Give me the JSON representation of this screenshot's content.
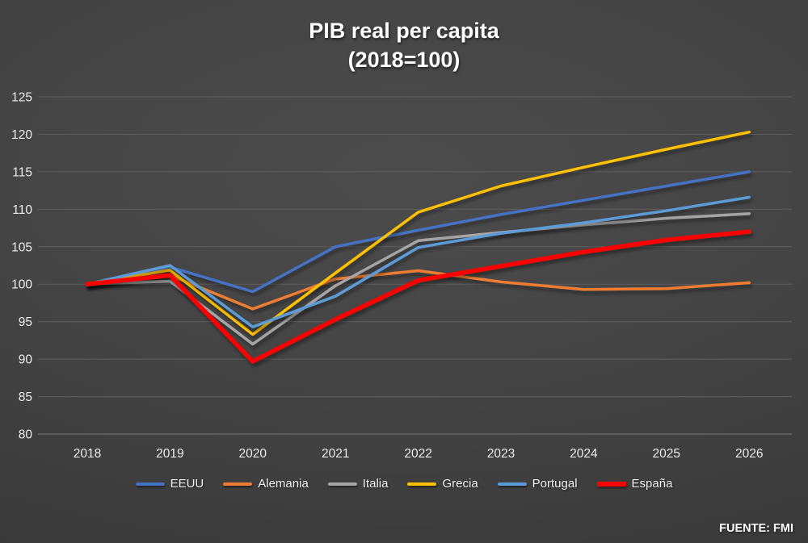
{
  "header": {
    "title_line1": "PIB real per capita",
    "title_line2": "(2018=100)"
  },
  "footer": {
    "source_note": "FUENTE: FMI"
  },
  "chart_data": {
    "type": "line",
    "title": "PIB real per capita (2018=100)",
    "x": [
      "2018",
      "2019",
      "2020",
      "2021",
      "2022",
      "2023",
      "2024",
      "2025",
      "2026"
    ],
    "ylim": [
      80,
      125
    ],
    "yticks": [
      80,
      85,
      90,
      95,
      100,
      105,
      110,
      115,
      120,
      125
    ],
    "grid": true,
    "legend_position": "bottom",
    "background_color": "#434343",
    "text_color": "#ededed",
    "series": [
      {
        "name": "EEUU",
        "color": "#4472C4",
        "line_width": 3.5,
        "values": [
          100,
          102.3,
          99.0,
          105.0,
          107.2,
          109.3,
          111.2,
          113.1,
          115.0
        ]
      },
      {
        "name": "Alemania",
        "color": "#ED7D31",
        "line_width": 3.5,
        "values": [
          100,
          101.2,
          96.7,
          100.7,
          101.8,
          100.3,
          99.3,
          99.4,
          100.2
        ]
      },
      {
        "name": "Italia",
        "color": "#A5A5A5",
        "line_width": 3.5,
        "values": [
          100,
          100.4,
          92.0,
          99.8,
          105.8,
          106.9,
          107.9,
          108.8,
          109.4
        ]
      },
      {
        "name": "Grecia",
        "color": "#FFC000",
        "line_width": 3.5,
        "values": [
          100,
          101.9,
          93.3,
          101.5,
          109.6,
          113.1,
          115.6,
          118.0,
          120.3
        ]
      },
      {
        "name": "Portugal",
        "color": "#5B9BD5",
        "line_width": 3.5,
        "values": [
          100,
          102.5,
          94.3,
          98.4,
          104.9,
          106.8,
          108.2,
          109.8,
          111.6
        ]
      },
      {
        "name": "España",
        "color": "#FF0000",
        "line_width": 5.5,
        "values": [
          100,
          101.2,
          89.7,
          95.3,
          100.5,
          102.4,
          104.3,
          105.9,
          107.0
        ]
      }
    ]
  }
}
